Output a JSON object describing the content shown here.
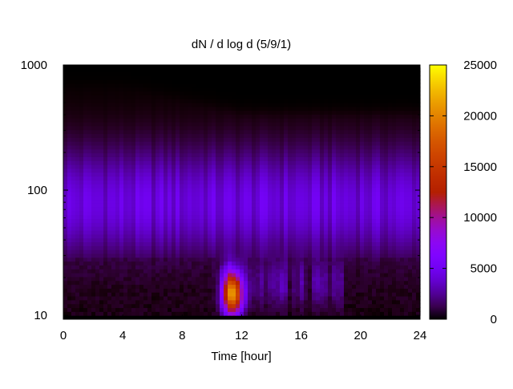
{
  "chart_data": {
    "type": "heatmap",
    "title": "dN / d log d (5/9/1)",
    "xlabel": "Time [hour]",
    "ylabel": "",
    "xlim": [
      0,
      24
    ],
    "ylim": [
      9.3,
      1000
    ],
    "y_scale": "log",
    "x_ticks": [
      0,
      4,
      8,
      12,
      16,
      20,
      24
    ],
    "x_tick_labels": [
      "0",
      "4",
      "8",
      "12",
      "16",
      "20",
      "24"
    ],
    "y_ticks": [
      10,
      100,
      1000
    ],
    "y_tick_labels": [
      "10",
      "100",
      "1000"
    ],
    "colorbar": {
      "range": [
        0,
        25000
      ],
      "ticks": [
        0,
        5000,
        10000,
        15000,
        20000,
        25000
      ],
      "tick_labels": [
        "0",
        "5000",
        "10000",
        "15000",
        "20000",
        "25000"
      ],
      "palette": "gnuplot black-blue-purple-red-orange-yellow"
    },
    "data_y_range": [
      10,
      950
    ],
    "features": [
      {
        "label": "peak",
        "time_hour": 11.4,
        "diameter": 15,
        "value": 20000
      },
      {
        "label": "band",
        "time_hour_range": [
          0,
          24
        ],
        "diameter_range": [
          40,
          300
        ],
        "value": 4500
      }
    ]
  }
}
